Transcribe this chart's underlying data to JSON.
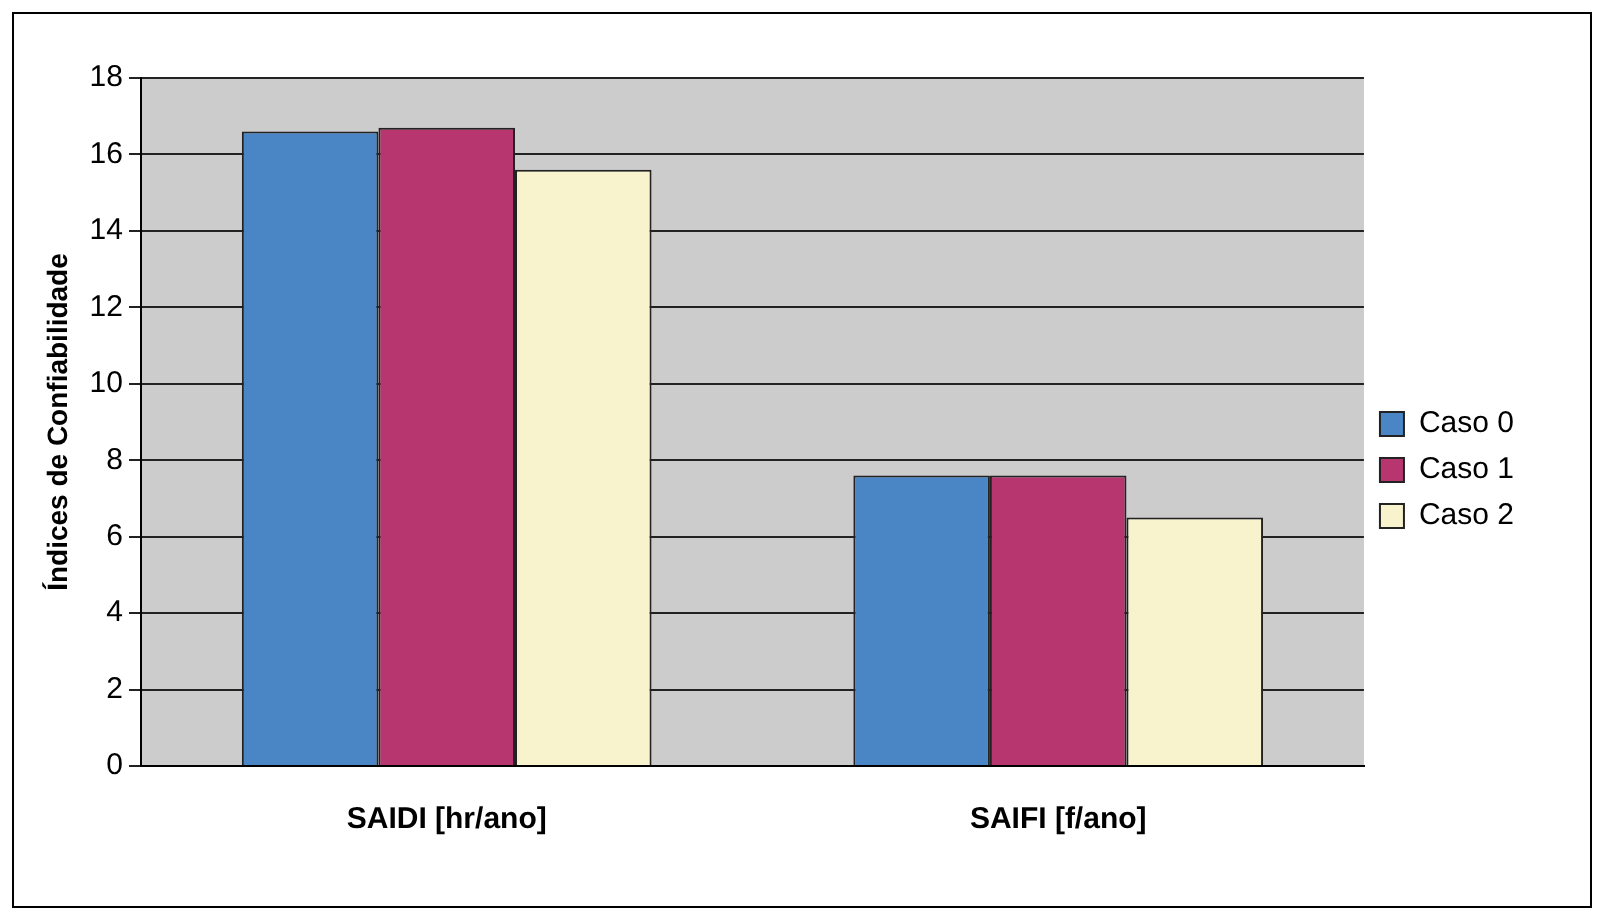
{
  "chart_data": {
    "type": "bar",
    "ylabel": "Índices de Confiabilidade",
    "categories": [
      "SAIDI [hr/ano]",
      "SAIFI [f/ano]"
    ],
    "series": [
      {
        "name": "Caso 0",
        "color": "#4a86c5",
        "values": [
          16.6,
          7.6
        ]
      },
      {
        "name": "Caso 1",
        "color": "#b83670",
        "values": [
          16.7,
          7.6
        ]
      },
      {
        "name": "Caso 2",
        "color": "#f8f3cc",
        "values": [
          15.6,
          6.5
        ]
      }
    ],
    "ylim": [
      0,
      18
    ],
    "yticks": [
      0,
      2,
      4,
      6,
      8,
      10,
      12,
      14,
      16,
      18
    ],
    "grid": "y",
    "legend": "right"
  }
}
